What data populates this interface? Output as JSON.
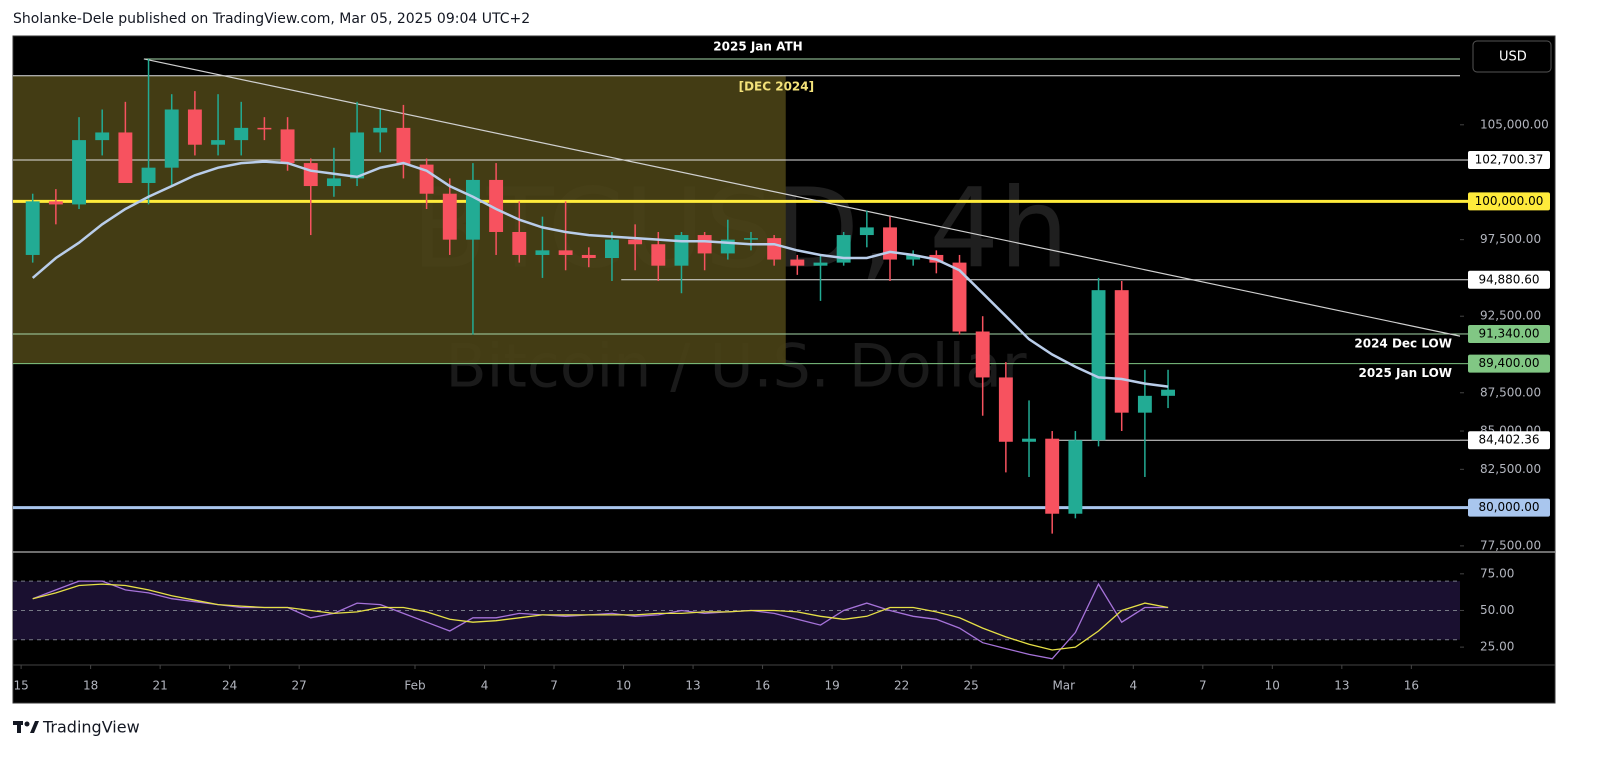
{
  "header": "Sholanke-Dele published on TradingView.com, Mar 05, 2025 09:04 UTC+2",
  "footer": "TradingView",
  "chart_data": {
    "type": "candlestick",
    "currency": "USD",
    "watermark_symbol": "BTCUSD, 4h",
    "watermark_name": "Bitcoin / U.S. Dollar",
    "xlim": [
      -0.35,
      62.1
    ],
    "ylim": [
      77100,
      110800
    ],
    "xticks": [
      {
        "value": 0,
        "label": "15"
      },
      {
        "value": 3,
        "label": "18"
      },
      {
        "value": 6,
        "label": "21"
      },
      {
        "value": 9,
        "label": "24"
      },
      {
        "value": 12,
        "label": "27"
      },
      {
        "value": 17,
        "label": "Feb"
      },
      {
        "value": 20,
        "label": "4"
      },
      {
        "value": 23,
        "label": "7"
      },
      {
        "value": 26,
        "label": "10"
      },
      {
        "value": 29,
        "label": "13"
      },
      {
        "value": 32,
        "label": "16"
      },
      {
        "value": 35,
        "label": "19"
      },
      {
        "value": 38,
        "label": "22"
      },
      {
        "value": 41,
        "label": "25"
      },
      {
        "value": 45,
        "label": "Mar"
      },
      {
        "value": 48,
        "label": "4"
      },
      {
        "value": 51,
        "label": "7"
      },
      {
        "value": 54,
        "label": "10"
      },
      {
        "value": 57,
        "label": "13"
      },
      {
        "value": 60,
        "label": "16"
      }
    ],
    "yticks": [
      {
        "value": 77500,
        "label": "77,500.00"
      },
      {
        "value": 82500,
        "label": "82,500.00"
      },
      {
        "value": 85000,
        "label": "85,000.00"
      },
      {
        "value": 87500,
        "label": "87,500.00"
      },
      {
        "value": 92500,
        "label": "92,500.00"
      },
      {
        "value": 97500,
        "label": "97,500.00"
      },
      {
        "value": 105000,
        "label": "105,000.00"
      }
    ],
    "up_color": "#22ab94",
    "down_color": "#f7525f",
    "x": [
      0.5,
      1.5,
      2.5,
      3.5,
      4.5,
      5.5,
      6.5,
      7.5,
      8.5,
      9.5,
      10.5,
      11.5,
      12.5,
      13.5,
      14.5,
      15.5,
      16.5,
      17.5,
      18.5,
      19.5,
      20.5,
      21.5,
      22.5,
      23.5,
      24.5,
      25.5,
      26.5,
      27.5,
      28.5,
      29.5,
      30.5,
      31.5,
      32.5,
      33.5,
      34.5,
      35.5,
      36.5,
      37.5,
      38.5,
      39.5,
      40.5,
      41.5,
      42.5,
      43.5,
      44.5,
      45.5,
      46.5,
      47.5,
      48.5,
      49.5
    ],
    "open": [
      96500,
      100000,
      99800,
      104000,
      104500,
      101200,
      102200,
      106000,
      103700,
      104000,
      104800,
      104700,
      102500,
      101000,
      101500,
      104500,
      104800,
      102400,
      100500,
      97500,
      101400,
      98000,
      96500,
      96800,
      96500,
      96300,
      97500,
      97200,
      95800,
      97800,
      96600,
      97500,
      97600,
      96200,
      95800,
      96000,
      97800,
      98300,
      96200,
      96500,
      96000,
      91500,
      88500,
      84300,
      84500,
      79600,
      84400,
      94200,
      86200,
      87300
    ],
    "high": [
      100500,
      100800,
      105500,
      106000,
      106500,
      109300,
      107000,
      107200,
      107000,
      106500,
      105500,
      105500,
      102800,
      103500,
      106500,
      106000,
      106300,
      102800,
      101500,
      102500,
      102500,
      100000,
      99000,
      100000,
      97000,
      98000,
      98500,
      98000,
      98000,
      98000,
      98800,
      98000,
      97800,
      96500,
      96500,
      98000,
      99400,
      99000,
      96800,
      96800,
      96500,
      92500,
      89500,
      87000,
      85000,
      85000,
      95000,
      94800,
      89000,
      89000
    ],
    "low": [
      96000,
      98500,
      99500,
      103000,
      101500,
      99800,
      101000,
      103000,
      103000,
      103000,
      104000,
      102000,
      97800,
      100300,
      101000,
      103200,
      101500,
      99500,
      96500,
      91300,
      96500,
      96000,
      95000,
      95500,
      95700,
      94800,
      95500,
      94800,
      94000,
      95500,
      96200,
      96800,
      95800,
      95200,
      93500,
      95800,
      97000,
      94800,
      95800,
      95300,
      91300,
      86000,
      82300,
      82000,
      78300,
      79300,
      84000,
      85000,
      82000,
      86500
    ],
    "close": [
      100000,
      99800,
      104000,
      104500,
      101200,
      102200,
      106000,
      103700,
      104000,
      104800,
      104700,
      102500,
      101000,
      101500,
      104500,
      104800,
      102400,
      100500,
      97500,
      101400,
      98000,
      96500,
      96800,
      96500,
      96300,
      97500,
      97200,
      95800,
      97800,
      96600,
      97500,
      97600,
      96200,
      95800,
      96000,
      97800,
      98300,
      96200,
      96500,
      96000,
      91500,
      88500,
      84300,
      84500,
      79600,
      84400,
      94200,
      86200,
      87300,
      87700
    ],
    "ma": {
      "color": "#b9cdea",
      "values": [
        95000,
        96300,
        97300,
        98500,
        99500,
        100300,
        101000,
        101700,
        102200,
        102500,
        102600,
        102500,
        102000,
        101800,
        101600,
        102200,
        102500,
        102000,
        101000,
        100300,
        99500,
        98800,
        98300,
        98000,
        97800,
        97700,
        97600,
        97500,
        97400,
        97400,
        97300,
        97200,
        97200,
        96800,
        96500,
        96300,
        96300,
        96700,
        96500,
        96200,
        95500,
        94000,
        92500,
        91000,
        90000,
        89200,
        88500,
        88400,
        88100,
        87900
      ]
    },
    "box": {
      "label": "[DEC 2024]",
      "color": "#4a4216",
      "label_color": "#f3e27a",
      "x": [
        -0.35,
        33
      ],
      "y": [
        89400,
        108200
      ]
    },
    "trendline": {
      "color": "#d0d0d0",
      "x": [
        5.3,
        62.1
      ],
      "y": [
        109300,
        91200
      ]
    },
    "levels": [
      {
        "value": 109300,
        "color": "#a5d6a7",
        "from": 5.3,
        "note": "2025 Jan ATH",
        "note_align": "center"
      },
      {
        "value": 108200,
        "color": "#e0e0e0"
      },
      {
        "value": 102700.37,
        "label": "102,700.37",
        "color": "#e0e0e0",
        "label_bg": "#ffffff",
        "label_fg": "#000000"
      },
      {
        "value": 100000,
        "label": "100,000.00",
        "color": "#ffeb3b",
        "label_bg": "#ffeb3b",
        "label_fg": "#000000",
        "width": 3
      },
      {
        "value": 94880.6,
        "label": "94,880.60",
        "color": "#e0e0e0",
        "label_bg": "#ffffff",
        "label_fg": "#000000",
        "from": 25.9
      },
      {
        "value": 91340,
        "label": "91,340.00",
        "color": "#a5d6a7",
        "label_bg": "#81c784",
        "label_fg": "#000000",
        "note": "2024 Dec LOW",
        "note_align": "right"
      },
      {
        "value": 89400,
        "label": "89,400.00",
        "color": "#81c784",
        "label_bg": "#81c784",
        "label_fg": "#000000",
        "note": "2025 Jan LOW",
        "note_align": "right"
      },
      {
        "value": 84402.36,
        "label": "84,402.36",
        "color": "#e0e0e0",
        "label_bg": "#ffffff",
        "label_fg": "#000000",
        "from": 44.4
      },
      {
        "value": 80000,
        "label": "80,000.00",
        "color": "#a9c6ee",
        "label_bg": "#a9c6ee",
        "label_fg": "#000000",
        "width": 3
      }
    ],
    "rsi": {
      "ylim": [
        12.8,
        89.2
      ],
      "yticks": [
        {
          "value": 25,
          "label": "25.00"
        },
        {
          "value": 50,
          "label": "50.00"
        },
        {
          "value": 75,
          "label": "75.00"
        }
      ],
      "levels": [
        30,
        50,
        70
      ],
      "band": [
        30,
        70
      ],
      "band_color": "#1a1030",
      "series": [
        {
          "color": "#a673d9",
          "values": [
            58,
            64,
            70,
            70,
            64,
            62,
            58,
            56,
            54,
            52,
            52,
            52,
            45,
            48,
            55,
            54,
            48,
            42,
            36,
            45,
            45,
            48,
            47,
            46,
            47,
            48,
            46,
            47,
            50,
            48,
            49,
            50,
            48,
            44,
            40,
            50,
            55,
            50,
            46,
            44,
            38,
            28,
            24,
            20,
            17,
            35,
            68,
            42,
            52,
            52
          ]
        },
        {
          "color": "#e6e046",
          "values": [
            58,
            62,
            67,
            68,
            67,
            64,
            60,
            57,
            54,
            53,
            52,
            52,
            50,
            48,
            49,
            52,
            52,
            49,
            44,
            42,
            43,
            45,
            47,
            47,
            47,
            47,
            47,
            48,
            48,
            49,
            49,
            50,
            50,
            49,
            46,
            44,
            46,
            52,
            52,
            49,
            45,
            38,
            32,
            27,
            23,
            25,
            36,
            50,
            55,
            52
          ]
        }
      ]
    }
  }
}
